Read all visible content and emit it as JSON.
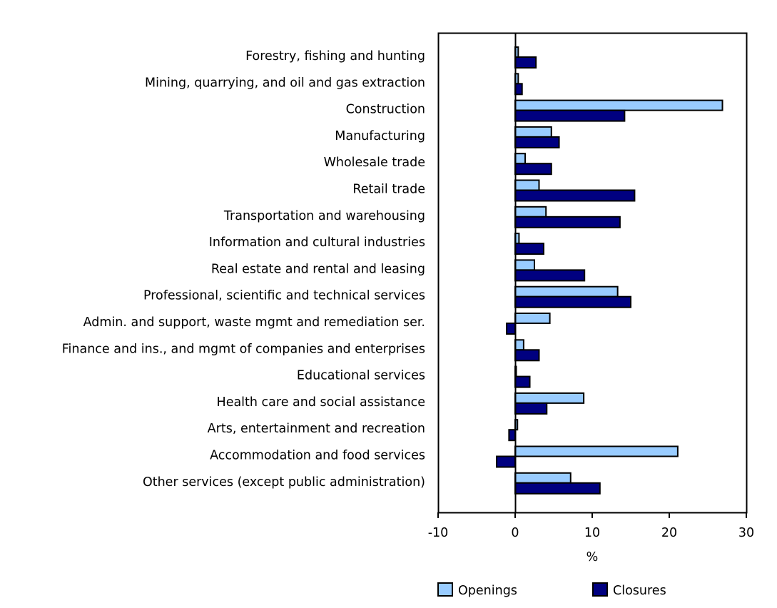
{
  "chart_data": {
    "type": "bar",
    "orientation": "horizontal",
    "title": "",
    "xlabel": "%",
    "ylabel": "",
    "xlim": [
      -10,
      30
    ],
    "xticks": [
      "-10",
      "0",
      "10",
      "20",
      "30"
    ],
    "grid": false,
    "legend_position": "bottom",
    "categories": [
      "Forestry, fishing and hunting",
      "Mining, quarrying, and oil and gas extraction",
      "Construction",
      "Manufacturing",
      "Wholesale trade",
      "Retail trade",
      "Transportation and warehousing",
      "Information and cultural industries",
      "Real estate and rental and leasing",
      "Professional, scientific and technical services",
      "Admin. and support, waste mgmt and remediation ser.",
      "Finance and ins., and mgmt of companies and enterprises",
      "Educational services",
      "Health care and social assistance",
      "Arts, entertainment and recreation",
      "Accommodation and food services",
      "Other services (except public administration)"
    ],
    "series": [
      {
        "name": "Openings",
        "color": "#99ccff",
        "values": [
          0.4,
          0.4,
          26.9,
          4.7,
          1.3,
          3.1,
          4.0,
          0.5,
          2.5,
          13.3,
          4.5,
          1.1,
          0.1,
          8.9,
          0.3,
          21.1,
          7.2
        ]
      },
      {
        "name": "Closures",
        "color": "#000080",
        "values": [
          2.7,
          0.9,
          14.2,
          5.7,
          4.7,
          15.5,
          13.6,
          3.7,
          9.0,
          15.0,
          -1.1,
          3.1,
          1.9,
          4.1,
          -0.8,
          -2.4,
          11.0
        ]
      }
    ]
  }
}
